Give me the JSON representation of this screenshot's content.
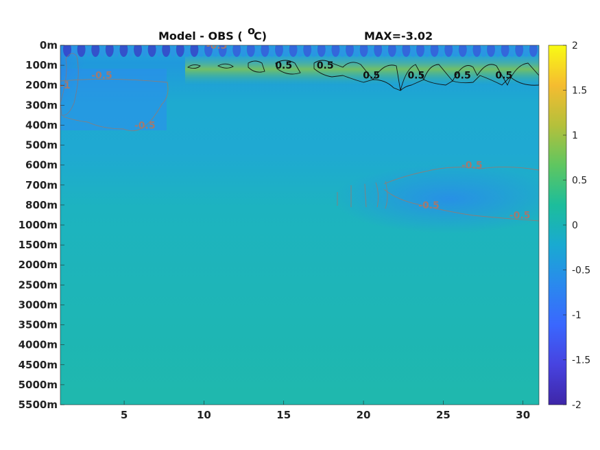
{
  "chart_data": {
    "type": "heatmap",
    "title": "Model - OBS (°C)",
    "title_main": "Model - OBS (",
    "title_degree": "o",
    "title_unit": "C)",
    "subtitle": "MAX=-3.02",
    "x_ticks": [
      "5",
      "10",
      "15",
      "20",
      "25",
      "30"
    ],
    "x_values": [
      5,
      10,
      15,
      20,
      25,
      30
    ],
    "xlim": [
      1,
      31
    ],
    "y_ticks": [
      "0m",
      "100m",
      "200m",
      "300m",
      "400m",
      "500m",
      "600m",
      "700m",
      "800m",
      "1000m",
      "1500m",
      "2000m",
      "2500m",
      "3000m",
      "3500m",
      "4000m",
      "4500m",
      "5000m",
      "5500m"
    ],
    "colorbar": {
      "ticks": [
        "2",
        "1.5",
        "1",
        "0.5",
        "0",
        "-0.5",
        "-1",
        "-1.5",
        "-2"
      ],
      "range": [
        -2,
        2
      ],
      "colormap": "parula",
      "colors": [
        "#3e26a8",
        "#4743e0",
        "#3a67fe",
        "#2a89ee",
        "#19aad1",
        "#1cbd9b",
        "#5fc660",
        "#b5c03b",
        "#f5bc30",
        "#f9fb14"
      ]
    },
    "contour_labels": {
      "positive": [
        {
          "text": "0.5",
          "x": 15.0,
          "y": "100m"
        },
        {
          "text": "0.5",
          "x": 17.6,
          "y": "100m"
        },
        {
          "text": "0.5",
          "x": 20.5,
          "y": "150m"
        },
        {
          "text": "0.5",
          "x": 23.3,
          "y": "150m"
        },
        {
          "text": "0.5",
          "x": 26.2,
          "y": "150m"
        },
        {
          "text": "0.5",
          "x": 28.8,
          "y": "150m"
        }
      ],
      "negative": [
        {
          "text": "-1",
          "x": 1.3,
          "y": "200m"
        },
        {
          "text": "-0.5",
          "x": 3.6,
          "y": "150m"
        },
        {
          "text": "-0.5",
          "x": 6.3,
          "y": "400m"
        },
        {
          "text": "-0.5",
          "x": 10.8,
          "y": "0m"
        },
        {
          "text": "-0.5",
          "x": 26.8,
          "y": "600m"
        },
        {
          "text": "-0.5",
          "x": 29.8,
          "y": "900m"
        },
        {
          "text": "-0.5",
          "x": 24.1,
          "y": "800m"
        }
      ]
    }
  }
}
